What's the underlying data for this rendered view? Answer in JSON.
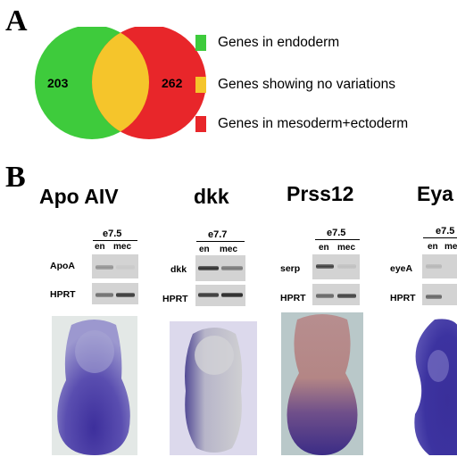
{
  "panel_a": {
    "letter": "A",
    "venn": {
      "left_count": "203",
      "right_count": "262",
      "colors": {
        "left": "#3ecb3c",
        "right": "#e8262a",
        "overlap": "#f5c52b"
      }
    },
    "legend": [
      {
        "label": "Genes in endoderm",
        "color": "#3ecb3c"
      },
      {
        "label": "Genes showing no variations",
        "color": "#f5c52b"
      },
      {
        "label": "Genes in mesoderm+ectoderm",
        "color": "#e8262a"
      }
    ]
  },
  "panel_b": {
    "letter": "B",
    "panels": [
      {
        "title": "Apo AIV",
        "stage": "e7.5",
        "lanes": [
          "en",
          "mec"
        ],
        "gene_row": "ApoA",
        "control_row": "HPRT",
        "gene_expression": {
          "en": 0.35,
          "mec": 0.05
        },
        "control_expression": {
          "en": 0.55,
          "mec": 0.85
        }
      },
      {
        "title": "dkk",
        "stage": "e7.7",
        "lanes": [
          "en",
          "mec"
        ],
        "gene_row": "dkk",
        "control_row": "HPRT",
        "gene_expression": {
          "en": 0.9,
          "mec": 0.5
        },
        "control_expression": {
          "en": 0.85,
          "mec": 0.95
        }
      },
      {
        "title": "Prss12",
        "stage": "e7.5",
        "lanes": [
          "en",
          "mec"
        ],
        "gene_row": "serp",
        "control_row": "HPRT",
        "gene_expression": {
          "en": 0.8,
          "mec": 0.1
        },
        "control_expression": {
          "en": 0.6,
          "mec": 0.8
        }
      },
      {
        "title": "Eya",
        "stage": "e7.5",
        "lanes": [
          "en",
          "me"
        ],
        "gene_row": "eyeA",
        "control_row": "HPRT",
        "gene_expression": {
          "en": 0.15,
          "mec": 0.0
        },
        "control_expression": {
          "en": 0.6,
          "mec": 0.0
        }
      }
    ]
  }
}
